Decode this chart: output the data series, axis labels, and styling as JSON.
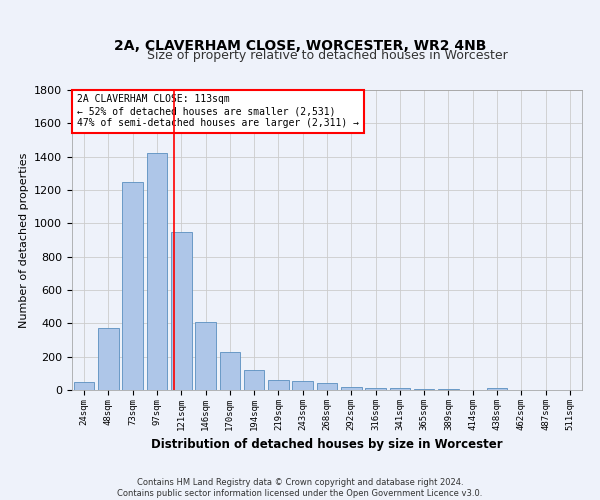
{
  "title1": "2A, CLAVERHAM CLOSE, WORCESTER, WR2 4NB",
  "title2": "Size of property relative to detached houses in Worcester",
  "xlabel": "Distribution of detached houses by size in Worcester",
  "ylabel": "Number of detached properties",
  "footnote1": "Contains HM Land Registry data © Crown copyright and database right 2024.",
  "footnote2": "Contains public sector information licensed under the Open Government Licence v3.0.",
  "categories": [
    "24sqm",
    "48sqm",
    "73sqm",
    "97sqm",
    "121sqm",
    "146sqm",
    "170sqm",
    "194sqm",
    "219sqm",
    "243sqm",
    "268sqm",
    "292sqm",
    "316sqm",
    "341sqm",
    "365sqm",
    "389sqm",
    "414sqm",
    "438sqm",
    "462sqm",
    "487sqm",
    "511sqm"
  ],
  "values": [
    50,
    370,
    1250,
    1420,
    950,
    410,
    230,
    120,
    60,
    55,
    40,
    20,
    15,
    10,
    8,
    5,
    3,
    10,
    2,
    1,
    1
  ],
  "bar_color": "#aec6e8",
  "bar_edge_color": "#5a8fc0",
  "vline_color": "red",
  "annotation_text1": "2A CLAVERHAM CLOSE: 113sqm",
  "annotation_text2": "← 52% of detached houses are smaller (2,531)",
  "annotation_text3": "47% of semi-detached houses are larger (2,311) →",
  "annotation_box_color": "white",
  "annotation_box_edge": "red",
  "ylim": [
    0,
    1800
  ],
  "yticks": [
    0,
    200,
    400,
    600,
    800,
    1000,
    1200,
    1400,
    1600,
    1800
  ],
  "grid_color": "#cccccc",
  "bg_color": "#eef2fa"
}
